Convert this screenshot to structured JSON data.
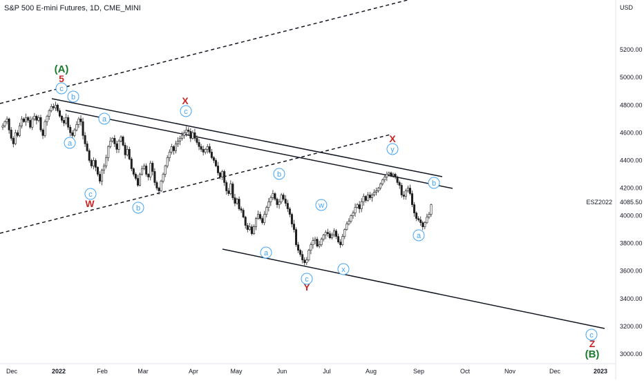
{
  "header": {
    "title": "S&P 500 E-mini Futures, 1D, CME_MINI"
  },
  "colors": {
    "up": "#26a69a",
    "down": "#1e1e1e",
    "wick": "#1e1e1e",
    "blue_label": "#42a5f5",
    "red_label": "#c62828",
    "green_label": "#1b7a2b",
    "axis_text": "#131722",
    "price_badge_bg": "#ffffff"
  },
  "chart_data": {
    "type": "candlestick",
    "symbol": "ESZ2022",
    "timeframe": "1D",
    "exchange": "CME_MINI",
    "currency": "USD",
    "ylim": [
      2930,
      5560
    ],
    "y_ticks": [
      "3000.00",
      "3200.00",
      "3400.00",
      "3600.00",
      "3800.00",
      "4000.00",
      "4200.00",
      "4400.00",
      "4600.00",
      "4800.00",
      "5000.00",
      "5200.00"
    ],
    "x_labels": [
      "Dec",
      "2022",
      "Feb",
      "Mar",
      "Apr",
      "May",
      "Jun",
      "Jul",
      "Aug",
      "Sep",
      "Oct",
      "Nov",
      "Dec",
      "2023"
    ],
    "last_price": "4085.50",
    "last_price_label": "ESZ2022",
    "wave_labels": {
      "green": [
        "(A)",
        "(B)"
      ],
      "red": [
        "5",
        "W",
        "X",
        "Y",
        "X",
        "Z"
      ],
      "blue": [
        "c",
        "b",
        "a",
        "a",
        "c",
        "c",
        "b",
        "a",
        "b",
        "w",
        "c",
        "x",
        "y",
        "a",
        "b",
        "c"
      ]
    },
    "closes": [
      4650,
      4680,
      4700,
      4620,
      4560,
      4520,
      4600,
      4580,
      4650,
      4700,
      4680,
      4710,
      4690,
      4640,
      4700,
      4720,
      4690,
      4710,
      4620,
      4580,
      4680,
      4720,
      4760,
      4790,
      4780,
      4800,
      4760,
      4720,
      4690,
      4670,
      4710,
      4640,
      4600,
      4580,
      4620,
      4660,
      4700,
      4680,
      4580,
      4520,
      4470,
      4400,
      4360,
      4400,
      4350,
      4300,
      4250,
      4330,
      4360,
      4420,
      4500,
      4540,
      4560,
      4520,
      4480,
      4540,
      4570,
      4510,
      4440,
      4480,
      4410,
      4340,
      4300,
      4270,
      4220,
      4300,
      4340,
      4360,
      4300,
      4280,
      4380,
      4320,
      4240,
      4200,
      4180,
      4250,
      4300,
      4360,
      4420,
      4460,
      4500,
      4470,
      4520,
      4540,
      4560,
      4580,
      4600,
      4620,
      4610,
      4560,
      4600,
      4560,
      4530,
      4500,
      4480,
      4460,
      4480,
      4500,
      4460,
      4420,
      4400,
      4360,
      4310,
      4280,
      4320,
      4240,
      4180,
      4160,
      4230,
      4130,
      4090,
      4120,
      4050,
      4040,
      3990,
      3930,
      3900,
      3920,
      3870,
      3920,
      3980,
      4010,
      3980,
      3950,
      4010,
      4060,
      4100,
      4130,
      4160,
      4120,
      4080,
      4100,
      4150,
      4120,
      4090,
      4050,
      4010,
      3940,
      3900,
      3790,
      3750,
      3720,
      3680,
      3660,
      3680,
      3750,
      3790,
      3820,
      3830,
      3780,
      3790,
      3830,
      3860,
      3880,
      3870,
      3840,
      3860,
      3890,
      3850,
      3810,
      3790,
      3850,
      3900,
      3940,
      3960,
      4000,
      4020,
      4060,
      4080,
      4050,
      4100,
      4140,
      4110,
      4150,
      4130,
      4150,
      4170,
      4180,
      4200,
      4230,
      4260,
      4280,
      4300,
      4310,
      4290,
      4300,
      4280,
      4240,
      4220,
      4150,
      4140,
      4180,
      4200,
      4160,
      4080,
      4020,
      3980,
      3970,
      3950,
      3920,
      3950,
      3990,
      4010,
      4080
    ]
  }
}
